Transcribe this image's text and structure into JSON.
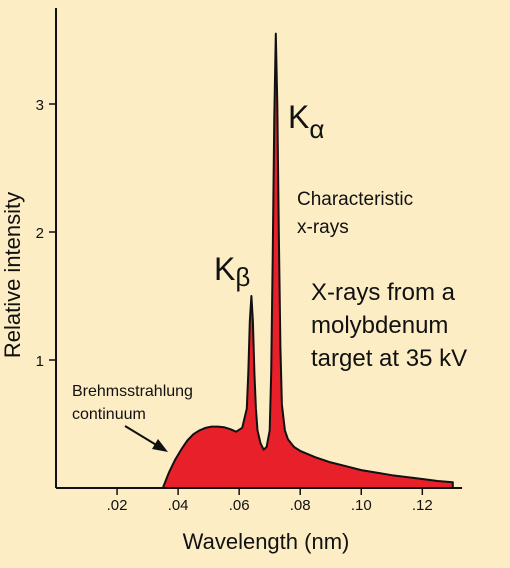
{
  "colors": {
    "background": "#fcedc4",
    "fill": "#e8202a",
    "outline": "#111111"
  },
  "chart_data": {
    "type": "area",
    "xlabel": "Wavelength (nm)",
    "ylabel": "Relative intensity",
    "xlim": [
      0,
      0.133
    ],
    "ylim": [
      0,
      3.75
    ],
    "xticks": [
      {
        "value": 0.02,
        "label": ".02"
      },
      {
        "value": 0.04,
        "label": ".04"
      },
      {
        "value": 0.06,
        "label": ".06"
      },
      {
        "value": 0.08,
        "label": ".08"
      },
      {
        "value": 0.1,
        "label": ".10"
      },
      {
        "value": 0.12,
        "label": ".12"
      }
    ],
    "yticks": [
      {
        "value": 1,
        "label": "1"
      },
      {
        "value": 2,
        "label": "2"
      },
      {
        "value": 3,
        "label": "3"
      }
    ],
    "series": [
      {
        "x": [
          0.035,
          0.037,
          0.039,
          0.041,
          0.043,
          0.045,
          0.047,
          0.049,
          0.051,
          0.053,
          0.055,
          0.057,
          0.059,
          0.061,
          0.0625,
          0.063,
          0.0635,
          0.064,
          0.0645,
          0.065,
          0.0655,
          0.066,
          0.067,
          0.068,
          0.069,
          0.07,
          0.0705,
          0.071,
          0.0715,
          0.072,
          0.0725,
          0.073,
          0.0735,
          0.074,
          0.075,
          0.076,
          0.078,
          0.08,
          0.085,
          0.09,
          0.095,
          0.1,
          0.105,
          0.11,
          0.115,
          0.12,
          0.125,
          0.13
        ],
        "y": [
          0.0,
          0.12,
          0.22,
          0.3,
          0.37,
          0.42,
          0.45,
          0.47,
          0.48,
          0.48,
          0.475,
          0.46,
          0.44,
          0.47,
          0.62,
          0.9,
          1.3,
          1.5,
          1.3,
          0.9,
          0.62,
          0.45,
          0.35,
          0.3,
          0.32,
          0.45,
          0.9,
          1.8,
          2.9,
          3.55,
          3.0,
          2.0,
          1.1,
          0.65,
          0.45,
          0.38,
          0.32,
          0.29,
          0.24,
          0.2,
          0.17,
          0.14,
          0.12,
          0.1,
          0.085,
          0.07,
          0.055,
          0.045
        ]
      }
    ],
    "annotations": {
      "k_alpha_base": "K",
      "k_alpha_sub": "α",
      "k_beta_base": "K",
      "k_beta_sub": "β",
      "characteristic_line1": "Characteristic",
      "characteristic_line2": "x-rays",
      "note_line1": "X-rays from a",
      "note_line2": "molybdenum",
      "note_line3": "target at 35 kV",
      "continuum_line1": "Brehmsstrahlung",
      "continuum_line2": "continuum"
    }
  }
}
